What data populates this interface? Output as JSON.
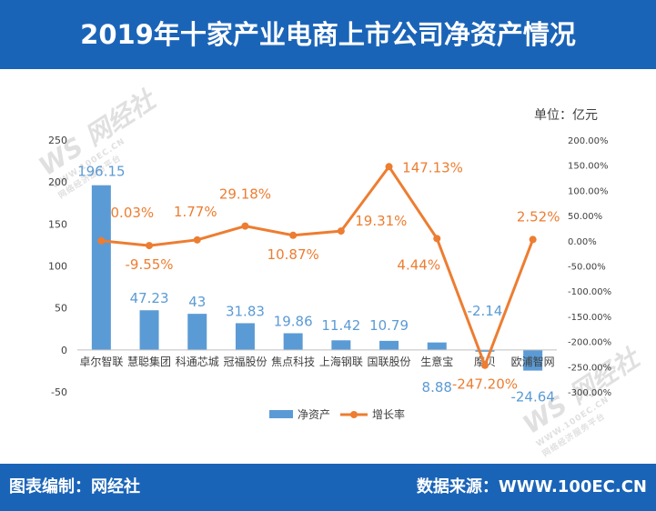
{
  "title": "2019年十家产业电商上市公司净资产情况",
  "unit": "单位：亿元",
  "footer": {
    "left": "图表编制：网经社",
    "right": "数据来源：WWW.100EC.CN"
  },
  "watermark": {
    "text": "网经社",
    "url": "WWW.100EC.CN",
    "slogan": "网络经济服务平台"
  },
  "colors": {
    "header": "#1a64b8",
    "bar": "#5b9bd5",
    "line": "#ed7d31"
  },
  "chart_data": {
    "type": "bar",
    "categories": [
      "卓尔智联",
      "慧聪集团",
      "科通芯城",
      "冠福股份",
      "焦点科技",
      "上海钢联",
      "国联股份",
      "生意宝",
      "摩贝",
      "欧浦智网"
    ],
    "series": [
      {
        "name": "净资产",
        "type": "bar",
        "axis": "left",
        "values": [
          196.15,
          47.23,
          43,
          31.83,
          19.86,
          11.42,
          10.79,
          8.88,
          -2.14,
          -24.64
        ],
        "labels": [
          "196.15",
          "47.23",
          "43",
          "31.83",
          "19.86",
          "11.42",
          "10.79",
          "8.88",
          "-2.14",
          "-24.64"
        ]
      },
      {
        "name": "增长率",
        "type": "line",
        "axis": "right",
        "values": [
          0.03,
          -9.55,
          1.77,
          29.18,
          10.87,
          19.31,
          147.13,
          4.44,
          -247.2,
          2.52
        ],
        "labels": [
          "0.03%",
          "-9.55%",
          "1.77%",
          "29.18%",
          "10.87%",
          "19.31%",
          "147.13%",
          "4.44%",
          "-247.20%",
          "2.52%"
        ]
      }
    ],
    "y_left": {
      "range": [
        -50,
        250
      ],
      "ticks": [
        250,
        200,
        150,
        100,
        50,
        0,
        -50
      ],
      "tick_labels": [
        "250",
        "200",
        "150",
        "100",
        "50",
        "0",
        "-50"
      ]
    },
    "y_right": {
      "range": [
        -300,
        200
      ],
      "ticks": [
        200,
        150,
        100,
        50,
        0,
        -50,
        -100,
        -150,
        -200,
        -250,
        -300
      ],
      "tick_labels": [
        "200.00%",
        "150.00%",
        "100.00%",
        "50.00%",
        "0.00%",
        "-50.00%",
        "-100.00%",
        "-150.00%",
        "-200.00%",
        "-250.00%",
        "-300.00%"
      ]
    },
    "legend": {
      "position": "bottom",
      "items": [
        "净资产",
        "增长率"
      ]
    }
  }
}
